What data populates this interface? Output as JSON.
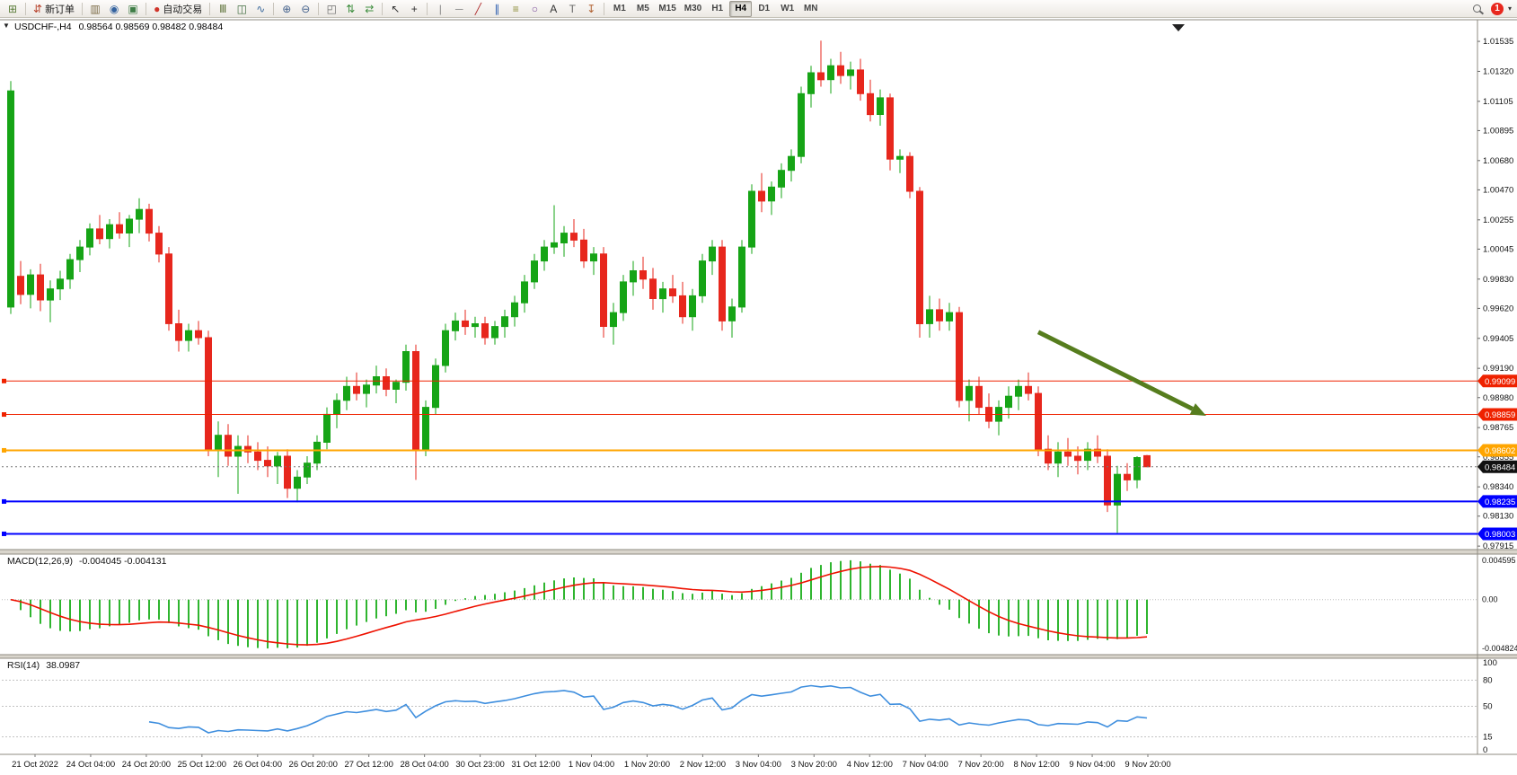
{
  "toolbar": {
    "groups": [
      {
        "name": "chart-group",
        "buttons": [
          {
            "name": "new-chart-button",
            "glyph": "⊞",
            "color": "#5b7d3a"
          }
        ]
      },
      {
        "name": "order-group",
        "buttons": [
          {
            "name": "new-order-button",
            "glyph": "⇵",
            "color": "#b8452f",
            "label": "新订单"
          }
        ]
      },
      {
        "name": "panels-group",
        "buttons": [
          {
            "name": "market-watch-button",
            "glyph": "▥",
            "color": "#7a6a45"
          },
          {
            "name": "navigator-button",
            "glyph": "◉",
            "color": "#34629e"
          },
          {
            "name": "terminal-button",
            "glyph": "▣",
            "color": "#3f7d46"
          }
        ]
      },
      {
        "name": "autotrading-group",
        "buttons": [
          {
            "name": "autotrading-button",
            "glyph": "●",
            "color": "#d0342a",
            "label": "自动交易"
          }
        ]
      },
      {
        "name": "chart-type-group",
        "buttons": [
          {
            "name": "bar-chart-button",
            "glyph": "Ⅲ",
            "color": "#556b2f"
          },
          {
            "name": "candlestick-chart-button",
            "glyph": "◫",
            "color": "#3e6b3e"
          },
          {
            "name": "line-chart-button",
            "glyph": "∿",
            "color": "#3e6b9e"
          }
        ]
      },
      {
        "name": "zoom-group",
        "buttons": [
          {
            "name": "zoom-in-button",
            "glyph": "⊕",
            "color": "#44618c"
          },
          {
            "name": "zoom-out-button",
            "glyph": "⊖",
            "color": "#44618c"
          }
        ]
      },
      {
        "name": "window-group",
        "buttons": [
          {
            "name": "tile-windows-button",
            "glyph": "◰",
            "color": "#6b6b6b"
          },
          {
            "name": "arrange-vertical-button",
            "glyph": "⇅",
            "color": "#3e8e3e"
          },
          {
            "name": "arrange-horizontal-button",
            "glyph": "⇄",
            "color": "#3e8e3e"
          }
        ]
      },
      {
        "name": "cursor-group",
        "buttons": [
          {
            "name": "cursor-button",
            "glyph": "↖",
            "color": "#333333"
          },
          {
            "name": "crosshair-button",
            "glyph": "+",
            "color": "#333333"
          }
        ]
      },
      {
        "name": "drawing-group",
        "buttons": [
          {
            "name": "vertical-line-button",
            "glyph": "|",
            "color": "#888888"
          },
          {
            "name": "horizontal-line-button",
            "glyph": "─",
            "color": "#888888"
          },
          {
            "name": "trendline-button",
            "glyph": "╱",
            "color": "#b03030"
          },
          {
            "name": "equidistant-channel-button",
            "glyph": "∥",
            "color": "#3060b0"
          },
          {
            "name": "fibonacci-button",
            "glyph": "≡",
            "color": "#8a8a33"
          },
          {
            "name": "shapes-button",
            "glyph": "○",
            "color": "#7a4a9a"
          },
          {
            "name": "text-button",
            "glyph": "A",
            "color": "#333333"
          },
          {
            "name": "text-label-button",
            "glyph": "T",
            "color": "#666666"
          },
          {
            "name": "arrows-button",
            "glyph": "↧",
            "color": "#b06030"
          }
        ]
      }
    ],
    "timeframes": {
      "items": [
        "M1",
        "M5",
        "M15",
        "M30",
        "H1",
        "H4",
        "D1",
        "W1",
        "MN"
      ],
      "active": "H4"
    },
    "notification_count": "1"
  },
  "chart_data": {
    "type": "candlestick",
    "symbol": "USDCHF-",
    "period": "H4",
    "title_text": "USDCHF-,H4",
    "ohlc_text": "0.98564 0.98569 0.98482 0.98484",
    "current_bar": {
      "open": "0.98564",
      "high": "0.98569",
      "low": "0.98482",
      "close": "0.98484"
    },
    "price_range": [
      0.9789,
      1.0169
    ],
    "price_axis": [
      "1.01535",
      "1.01320",
      "1.01105",
      "1.00895",
      "1.00680",
      "1.00470",
      "1.00255",
      "1.00045",
      "0.99830",
      "0.99620",
      "0.99405",
      "0.99190",
      "0.98980",
      "0.98765",
      "0.98555",
      "0.98340",
      "0.98130",
      "0.97915"
    ],
    "colors": {
      "up": "#16A416",
      "down": "#E7271D",
      "macd_histogram": "#2FB52F",
      "macd_signal": "#EE1100",
      "rsi_line": "#3E8EDE",
      "arrow": "#567D1E",
      "line_red": "#EF2200",
      "line_orange": "#FFA500",
      "line_blue": "#0000FF",
      "current_price_tag": "#111111"
    },
    "candles": [
      [
        0.9963,
        1.0125,
        0.9958,
        1.0118
      ],
      [
        0.9985,
        0.9996,
        0.9965,
        0.9972
      ],
      [
        0.9972,
        0.999,
        0.9962,
        0.9986
      ],
      [
        0.9986,
        0.9994,
        0.996,
        0.9968
      ],
      [
        0.9968,
        0.9982,
        0.9952,
        0.9976
      ],
      [
        0.9976,
        0.9989,
        0.9968,
        0.9983
      ],
      [
        0.9983,
        1.0001,
        0.9976,
        0.9997
      ],
      [
        0.9997,
        1.0011,
        0.9988,
        1.0006
      ],
      [
        1.0006,
        1.0023,
        1.0,
        1.0019
      ],
      [
        1.0019,
        1.0029,
        1.0008,
        1.0012
      ],
      [
        1.0012,
        1.0026,
        1.0005,
        1.0022
      ],
      [
        1.0022,
        1.0031,
        1.0012,
        1.0016
      ],
      [
        1.0016,
        1.0029,
        1.0006,
        1.0026
      ],
      [
        1.0026,
        1.0041,
        1.0016,
        1.0033
      ],
      [
        1.0033,
        1.0037,
        1.001,
        1.0016
      ],
      [
        1.0016,
        1.0021,
        0.9995,
        1.0001
      ],
      [
        1.0001,
        1.0006,
        0.9946,
        0.9951
      ],
      [
        0.9951,
        0.9961,
        0.9931,
        0.9939
      ],
      [
        0.9939,
        0.9951,
        0.9931,
        0.9946
      ],
      [
        0.9946,
        0.9953,
        0.9936,
        0.9941
      ],
      [
        0.9941,
        0.9946,
        0.9856,
        0.9861
      ],
      [
        0.9861,
        0.9881,
        0.9841,
        0.9871
      ],
      [
        0.9871,
        0.9879,
        0.9849,
        0.9856
      ],
      [
        0.9856,
        0.9871,
        0.9829,
        0.9863
      ],
      [
        0.9863,
        0.9871,
        0.9851,
        0.9859
      ],
      [
        0.9859,
        0.9866,
        0.9846,
        0.9853
      ],
      [
        0.9853,
        0.9863,
        0.9841,
        0.9849
      ],
      [
        0.9849,
        0.9859,
        0.9836,
        0.9856
      ],
      [
        0.9856,
        0.9861,
        0.9826,
        0.9833
      ],
      [
        0.9833,
        0.9846,
        0.9823,
        0.9841
      ],
      [
        0.9841,
        0.9856,
        0.9836,
        0.9851
      ],
      [
        0.9851,
        0.9871,
        0.9846,
        0.9866
      ],
      [
        0.9866,
        0.9891,
        0.9861,
        0.9886
      ],
      [
        0.9886,
        0.9901,
        0.9876,
        0.9896
      ],
      [
        0.9896,
        0.9913,
        0.9889,
        0.9906
      ],
      [
        0.9906,
        0.9916,
        0.9896,
        0.9901
      ],
      [
        0.9901,
        0.9911,
        0.9891,
        0.9907
      ],
      [
        0.9907,
        0.9921,
        0.9901,
        0.9913
      ],
      [
        0.9913,
        0.9919,
        0.9899,
        0.9904
      ],
      [
        0.9904,
        0.9911,
        0.9894,
        0.9909
      ],
      [
        0.9909,
        0.9936,
        0.9903,
        0.9931
      ],
      [
        0.9931,
        0.9936,
        0.9839,
        0.9861
      ],
      [
        0.9861,
        0.9896,
        0.9856,
        0.9891
      ],
      [
        0.9891,
        0.9926,
        0.9886,
        0.9921
      ],
      [
        0.9921,
        0.9951,
        0.9916,
        0.9946
      ],
      [
        0.9946,
        0.9959,
        0.9939,
        0.9953
      ],
      [
        0.9953,
        0.9961,
        0.9943,
        0.9949
      ],
      [
        0.9949,
        0.9956,
        0.9941,
        0.9951
      ],
      [
        0.9951,
        0.9956,
        0.9936,
        0.9941
      ],
      [
        0.9941,
        0.9953,
        0.9936,
        0.9949
      ],
      [
        0.9949,
        0.9961,
        0.9941,
        0.9956
      ],
      [
        0.9956,
        0.9971,
        0.9949,
        0.9966
      ],
      [
        0.9966,
        0.9986,
        0.9959,
        0.9981
      ],
      [
        0.9981,
        1.0001,
        0.9976,
        0.9996
      ],
      [
        0.9996,
        1.0011,
        0.9989,
        1.0006
      ],
      [
        1.0006,
        1.0036,
        1.0001,
        1.0009
      ],
      [
        1.0009,
        1.0021,
        0.9999,
        1.0016
      ],
      [
        1.0016,
        1.0026,
        1.0006,
        1.0011
      ],
      [
        1.0011,
        1.0019,
        0.9991,
        0.9996
      ],
      [
        0.9996,
        1.0006,
        0.9986,
        1.0001
      ],
      [
        1.0001,
        1.0006,
        0.9941,
        0.9949
      ],
      [
        0.9949,
        0.9966,
        0.9936,
        0.9959
      ],
      [
        0.9959,
        0.9986,
        0.9953,
        0.9981
      ],
      [
        0.9981,
        0.9996,
        0.9971,
        0.9989
      ],
      [
        0.9989,
        0.9999,
        0.9976,
        0.9983
      ],
      [
        0.9983,
        0.9991,
        0.9961,
        0.9969
      ],
      [
        0.9969,
        0.9981,
        0.9959,
        0.9976
      ],
      [
        0.9976,
        0.9986,
        0.9966,
        0.9971
      ],
      [
        0.9971,
        0.9981,
        0.9951,
        0.9956
      ],
      [
        0.9956,
        0.9976,
        0.9946,
        0.9971
      ],
      [
        0.9971,
        1.0001,
        0.9966,
        0.9996
      ],
      [
        0.9996,
        1.0011,
        0.9986,
        1.0006
      ],
      [
        1.0006,
        1.0011,
        0.9946,
        0.9953
      ],
      [
        0.9953,
        0.9969,
        0.9941,
        0.9963
      ],
      [
        0.9963,
        1.0011,
        0.9959,
        1.0006
      ],
      [
        1.0006,
        1.0051,
        1.0001,
        1.0046
      ],
      [
        1.0046,
        1.0059,
        1.0031,
        1.0039
      ],
      [
        1.0039,
        1.0053,
        1.0029,
        1.0049
      ],
      [
        1.0049,
        1.0066,
        1.0041,
        1.0061
      ],
      [
        1.0061,
        1.0076,
        1.0053,
        1.0071
      ],
      [
        1.0071,
        1.0121,
        1.0066,
        1.0116
      ],
      [
        1.0116,
        1.0136,
        1.0106,
        1.0131
      ],
      [
        1.0131,
        1.0154,
        1.0121,
        1.0126
      ],
      [
        1.0126,
        1.0141,
        1.0116,
        1.0136
      ],
      [
        1.0136,
        1.0146,
        1.0123,
        1.0129
      ],
      [
        1.0129,
        1.0139,
        1.0119,
        1.0133
      ],
      [
        1.0133,
        1.0141,
        1.0111,
        1.0116
      ],
      [
        1.0116,
        1.0126,
        1.0096,
        1.0101
      ],
      [
        1.0101,
        1.0119,
        1.0093,
        1.0113
      ],
      [
        1.0113,
        1.0116,
        1.0061,
        1.0069
      ],
      [
        1.0069,
        1.0076,
        1.0059,
        1.0071
      ],
      [
        1.0071,
        1.0074,
        1.0041,
        1.0046
      ],
      [
        1.0046,
        1.0049,
        0.9941,
        0.9951
      ],
      [
        0.9951,
        0.9971,
        0.9941,
        0.9961
      ],
      [
        0.9961,
        0.9969,
        0.9946,
        0.9953
      ],
      [
        0.9953,
        0.9966,
        0.9946,
        0.9959
      ],
      [
        0.9959,
        0.9963,
        0.9891,
        0.9896
      ],
      [
        0.9896,
        0.9911,
        0.9881,
        0.9906
      ],
      [
        0.9906,
        0.9913,
        0.9886,
        0.9891
      ],
      [
        0.9891,
        0.9901,
        0.9876,
        0.9881
      ],
      [
        0.9881,
        0.9896,
        0.9871,
        0.9891
      ],
      [
        0.9891,
        0.9906,
        0.9883,
        0.9899
      ],
      [
        0.9899,
        0.9911,
        0.9889,
        0.9906
      ],
      [
        0.9906,
        0.9916,
        0.9896,
        0.9901
      ],
      [
        0.9901,
        0.9906,
        0.9856,
        0.9861
      ],
      [
        0.9861,
        0.9871,
        0.9846,
        0.9851
      ],
      [
        0.9851,
        0.9866,
        0.9841,
        0.9859
      ],
      [
        0.9859,
        0.9869,
        0.9849,
        0.9856
      ],
      [
        0.9856,
        0.9863,
        0.9843,
        0.9853
      ],
      [
        0.9853,
        0.9866,
        0.9846,
        0.9861
      ],
      [
        0.9861,
        0.9871,
        0.9851,
        0.9856
      ],
      [
        0.9856,
        0.9861,
        0.9816,
        0.9821
      ],
      [
        0.9821,
        0.9849,
        0.9801,
        0.9843
      ],
      [
        0.9843,
        0.9851,
        0.9831,
        0.9839
      ],
      [
        0.9839,
        0.9856,
        0.9833,
        0.9855
      ],
      [
        0.98564,
        0.98569,
        0.98482,
        0.98484
      ]
    ],
    "hlines": [
      {
        "value": 0.99099,
        "label": "0.99099",
        "color": "#EF2200",
        "width": 1
      },
      {
        "value": 0.98859,
        "label": "0.98859",
        "color": "#EF2200",
        "width": 1
      },
      {
        "value": 0.98602,
        "label": "0.98602",
        "color": "#FFA500",
        "width": 2
      },
      {
        "value": 0.98235,
        "label": "0.98235",
        "color": "#0000FF",
        "width": 2
      },
      {
        "value": 0.98003,
        "label": "0.98003",
        "color": "#0000FF",
        "width": 2
      }
    ],
    "current_price": {
      "value": 0.98484,
      "label": "0.98484",
      "color": "#111111"
    },
    "trend_arrow": {
      "from": {
        "index": 104,
        "price": 0.9945
      },
      "to": {
        "index": 121,
        "price": 0.9885
      },
      "color": "#567D1E"
    },
    "macd": {
      "name": "MACD(12,26,9)",
      "values_text": "-0.004045 -0.004131",
      "params": [
        12,
        26,
        9
      ],
      "axis": [
        "0.004595",
        "0.00",
        "-0.004824"
      ]
    },
    "rsi": {
      "name": "RSI(14)",
      "value_text": "38.0987",
      "period": 14,
      "scale_labels": [
        "100",
        "80",
        "50",
        "15",
        "0"
      ],
      "levels_dashed": [
        80,
        50,
        15
      ]
    },
    "time_axis": [
      "21 Oct 2022",
      "24 Oct 04:00",
      "24 Oct 20:00",
      "25 Oct 12:00",
      "26 Oct 04:00",
      "26 Oct 20:00",
      "27 Oct 12:00",
      "28 Oct 04:00",
      "30 Oct 23:00",
      "31 Oct 12:00",
      "1 Nov 04:00",
      "1 Nov 20:00",
      "2 Nov 12:00",
      "3 Nov 04:00",
      "3 Nov 20:00",
      "4 Nov 12:00",
      "7 Nov 04:00",
      "7 Nov 20:00",
      "8 Nov 12:00",
      "9 Nov 04:00",
      "9 Nov 20:00"
    ]
  }
}
